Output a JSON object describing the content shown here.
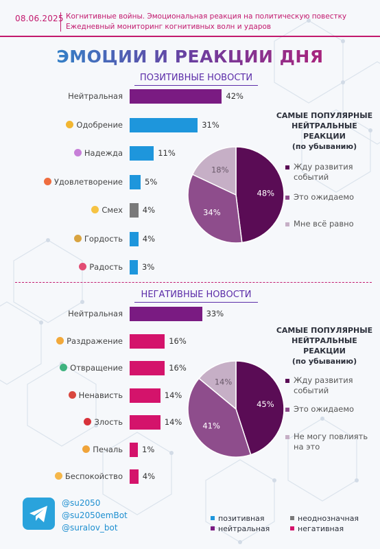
{
  "header": {
    "date": "08.06.2025",
    "subtitle_line1": "Когнитивные войны. Эмоциональная реакция на политическую повестку",
    "subtitle_line2": "Ежедневный мониторинг когнитивных волн и ударов"
  },
  "title": "ЭМОЦИИ И РЕАКЦИИ ДНЯ",
  "colors": {
    "positive": "#1e96dc",
    "neutral": "#7a1b82",
    "ambiguous": "#7a7a7a",
    "negative": "#d4136b"
  },
  "chart_data": [
    {
      "type": "bar",
      "section": "positive",
      "title": "ПОЗИТИВНЫЕ НОВОСТИ",
      "categories": [
        "Нейтральная",
        "Одобрение",
        "Надежда",
        "Удовлетворение",
        "Смех",
        "Гордость",
        "Радость"
      ],
      "values": [
        42,
        31,
        11,
        5,
        4,
        4,
        3
      ],
      "value_labels": [
        "42%",
        "31%",
        "11%",
        "5%",
        "4%",
        "4%",
        "3%"
      ],
      "bar_kinds": [
        "neutral",
        "positive",
        "positive",
        "positive",
        "ambiguous",
        "positive",
        "positive"
      ],
      "icons": [
        "",
        "handshake-emoji",
        "praying-hands-emoji",
        "satisfied-face-emoji",
        "laughing-face-emoji",
        "trophy-emoji",
        "gift-emoji"
      ],
      "icon_colors": [
        "",
        "#f2b632",
        "#c77fd8",
        "#ef6d3f",
        "#f6c343",
        "#d9a441",
        "#e24d74"
      ]
    },
    {
      "type": "pie",
      "section": "positive",
      "title_lines": [
        "САМЫЕ ПОПУЛЯРНЫЕ",
        "НЕЙТРАЛЬНЫЕ РЕАКЦИИ",
        "(по убыванию)"
      ],
      "categories": [
        "Жду развития событий",
        "Это ожидаемо",
        "Мне всё равно"
      ],
      "values": [
        48,
        34,
        18
      ],
      "value_labels": [
        "48%",
        "34%",
        "18%"
      ],
      "colors": [
        "#5a0c55",
        "#8e4d8c",
        "#c6afc6"
      ]
    },
    {
      "type": "bar",
      "section": "negative",
      "title": "НЕГАТИВНЫЕ НОВОСТИ",
      "categories": [
        "Нейтральная",
        "Раздражение",
        "Отвращение",
        "Ненависть",
        "Злость",
        "Печаль",
        "Беспокойство"
      ],
      "values": [
        33,
        16,
        16,
        14,
        14,
        1,
        4
      ],
      "value_labels": [
        "33%",
        "16%",
        "16%",
        "14%",
        "14%",
        "1%",
        "4%"
      ],
      "bar_kinds": [
        "neutral",
        "negative",
        "negative",
        "negative",
        "negative",
        "negative",
        "negative"
      ],
      "icons": [
        "",
        "irritated-face-emoji",
        "disgusted-face-emoji",
        "hateful-face-emoji",
        "angry-face-emoji",
        "sad-face-emoji",
        "worried-face-emoji"
      ],
      "icon_colors": [
        "",
        "#f2a93b",
        "#3fb37f",
        "#d9473f",
        "#d8333b",
        "#f0a43a",
        "#f5b74a"
      ]
    },
    {
      "type": "pie",
      "section": "negative",
      "title_lines": [
        "САМЫЕ ПОПУЛЯРНЫЕ",
        "НЕЙТРАЛЬНЫЕ РЕАКЦИИ",
        "(по убыванию)"
      ],
      "categories": [
        "Жду развития событий",
        "Это ожидаемо",
        "Не могу повлиять на это"
      ],
      "values": [
        45,
        41,
        14
      ],
      "value_labels": [
        "45%",
        "41%",
        "14%"
      ],
      "colors": [
        "#5a0c55",
        "#8e4d8c",
        "#c6afc6"
      ]
    }
  ],
  "footer": {
    "handles": [
      "@su2050",
      "@su2050emBot",
      "@suralov_bot"
    ],
    "telegram_icon": "paper-plane-icon",
    "legend": [
      {
        "label": "позитивная",
        "color": "#1e96dc"
      },
      {
        "label": "неоднозначная",
        "color": "#7a7a7a"
      },
      {
        "label": "нейтральная",
        "color": "#7a1b82"
      },
      {
        "label": "негативная",
        "color": "#d4136b"
      }
    ]
  }
}
